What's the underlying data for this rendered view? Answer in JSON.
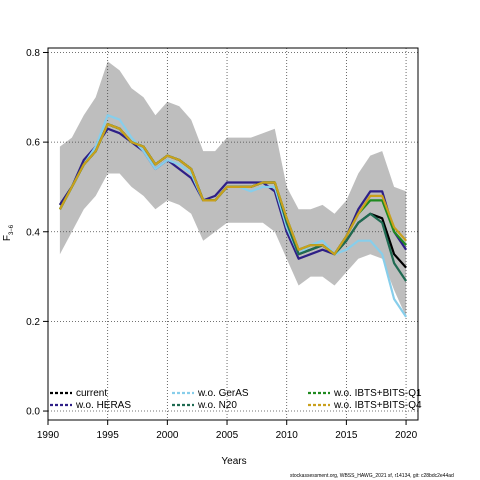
{
  "chart_data": {
    "type": "line",
    "xlabel": "Years",
    "ylabel": "F",
    "ylabel_sub": "3−6",
    "xlim": [
      1990,
      2021
    ],
    "ylim": [
      -0.02,
      0.81
    ],
    "xticks": [
      1990,
      1995,
      2000,
      2005,
      2010,
      2015,
      2020
    ],
    "yticks": [
      0.0,
      0.2,
      0.4,
      0.6,
      0.8
    ],
    "ytick_labels": [
      "0.0",
      "0.2",
      "0.4",
      "0.6",
      "0.8"
    ],
    "grid": true,
    "x": [
      1991,
      1992,
      1993,
      1994,
      1995,
      1996,
      1997,
      1998,
      1999,
      2000,
      2001,
      2002,
      2003,
      2004,
      2005,
      2006,
      2007,
      2008,
      2009,
      2010,
      2011,
      2012,
      2013,
      2014,
      2015,
      2016,
      2017,
      2018,
      2019,
      2020
    ],
    "band": {
      "color": "#bebebe",
      "upper": [
        0.59,
        0.61,
        0.66,
        0.7,
        0.78,
        0.76,
        0.72,
        0.7,
        0.66,
        0.69,
        0.68,
        0.65,
        0.58,
        0.58,
        0.61,
        0.61,
        0.61,
        0.62,
        0.63,
        0.5,
        0.45,
        0.45,
        0.46,
        0.44,
        0.47,
        0.53,
        0.57,
        0.58,
        0.5,
        0.49
      ],
      "lower": [
        0.35,
        0.4,
        0.45,
        0.48,
        0.53,
        0.53,
        0.5,
        0.48,
        0.45,
        0.47,
        0.46,
        0.44,
        0.38,
        0.4,
        0.42,
        0.42,
        0.42,
        0.42,
        0.4,
        0.34,
        0.28,
        0.3,
        0.3,
        0.28,
        0.31,
        0.34,
        0.35,
        0.34,
        0.27,
        0.21
      ]
    },
    "series": [
      {
        "name": "current",
        "color": "#000000",
        "width": 2.2,
        "dash": "",
        "values": [
          0.46,
          0.5,
          0.55,
          0.58,
          0.64,
          0.63,
          0.6,
          0.59,
          0.55,
          0.57,
          0.56,
          0.54,
          0.47,
          0.47,
          0.5,
          0.5,
          0.5,
          0.51,
          0.51,
          0.42,
          0.35,
          0.36,
          0.37,
          0.35,
          0.38,
          0.42,
          0.44,
          0.43,
          0.35,
          0.32
        ]
      },
      {
        "name": "w.o. HERAS",
        "color": "#2e1f87",
        "width": 2.2,
        "dash": "",
        "values": [
          0.46,
          0.5,
          0.56,
          0.59,
          0.63,
          0.62,
          0.6,
          0.58,
          0.54,
          0.56,
          0.54,
          0.52,
          0.47,
          0.48,
          0.51,
          0.51,
          0.51,
          0.51,
          0.49,
          0.4,
          0.34,
          0.35,
          0.36,
          0.35,
          0.39,
          0.45,
          0.49,
          0.49,
          0.4,
          0.36
        ]
      },
      {
        "name": "w.o. GerAS",
        "color": "#87ceeb",
        "width": 2.2,
        "dash": "",
        "values": [
          0.45,
          0.5,
          0.55,
          0.59,
          0.66,
          0.65,
          0.61,
          0.58,
          0.54,
          0.56,
          0.55,
          0.53,
          0.47,
          0.47,
          0.5,
          0.5,
          0.49,
          0.5,
          0.5,
          0.41,
          0.35,
          0.37,
          0.38,
          0.35,
          0.36,
          0.38,
          0.38,
          0.35,
          0.25,
          0.21
        ]
      },
      {
        "name": "w.o. N20",
        "color": "#1f6b52",
        "width": 2.2,
        "dash": "",
        "values": [
          0.45,
          0.5,
          0.55,
          0.58,
          0.64,
          0.63,
          0.6,
          0.59,
          0.55,
          0.57,
          0.56,
          0.54,
          0.47,
          0.47,
          0.5,
          0.5,
          0.5,
          0.51,
          0.51,
          0.42,
          0.35,
          0.36,
          0.37,
          0.35,
          0.38,
          0.42,
          0.44,
          0.42,
          0.33,
          0.29
        ]
      },
      {
        "name": "w.o. IBTS+BITS-Q1",
        "color": "#1f8a1f",
        "width": 2.2,
        "dash": "",
        "values": [
          0.45,
          0.5,
          0.55,
          0.58,
          0.64,
          0.63,
          0.6,
          0.59,
          0.55,
          0.57,
          0.56,
          0.54,
          0.47,
          0.47,
          0.5,
          0.5,
          0.5,
          0.51,
          0.51,
          0.43,
          0.36,
          0.37,
          0.37,
          0.35,
          0.39,
          0.44,
          0.47,
          0.47,
          0.4,
          0.37
        ]
      },
      {
        "name": "w.o. IBTS+BITS-Q4",
        "color": "#c9a01c",
        "width": 2.2,
        "dash": "",
        "values": [
          0.45,
          0.5,
          0.55,
          0.58,
          0.64,
          0.63,
          0.6,
          0.59,
          0.55,
          0.57,
          0.56,
          0.54,
          0.47,
          0.47,
          0.5,
          0.5,
          0.5,
          0.51,
          0.51,
          0.43,
          0.36,
          0.37,
          0.37,
          0.35,
          0.39,
          0.44,
          0.48,
          0.48,
          0.41,
          0.38
        ]
      }
    ],
    "legend": [
      {
        "label": "current",
        "color": "#000000",
        "style": "dash"
      },
      {
        "label": "w.o. HERAS",
        "color": "#2e1f87",
        "style": "dash"
      },
      {
        "label": "w.o. GerAS",
        "color": "#87ceeb",
        "style": "dash"
      },
      {
        "label": "w.o. N20",
        "color": "#1f6b52",
        "style": "dash"
      },
      {
        "label": "w.o. IBTS+BITS-Q1",
        "color": "#1f8a1f",
        "style": "dash"
      },
      {
        "label": "w.o. IBTS+BITS-Q4",
        "color": "#c9a01c",
        "style": "dash"
      }
    ],
    "legend_placement": "bottom inside plot, three columns"
  },
  "footer": "stockassessment.org, WBSS_HAWG_2021 sf, r14134, git: c28bdc2e44ad"
}
